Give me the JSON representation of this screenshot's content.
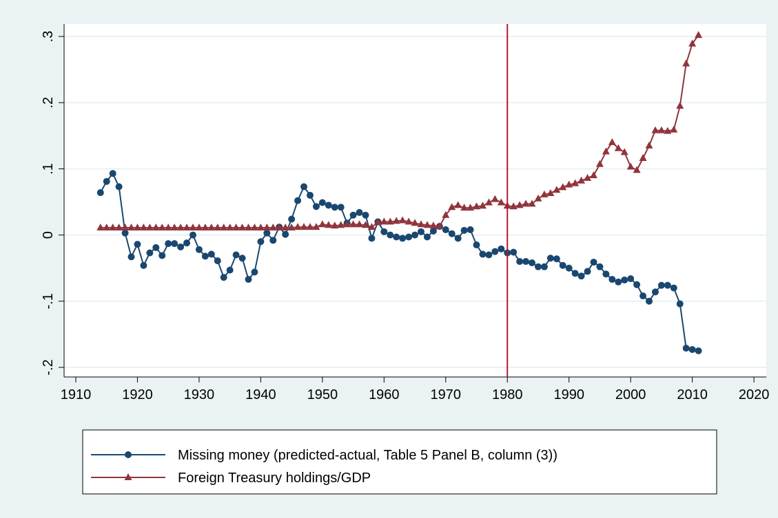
{
  "chart_data": {
    "type": "line",
    "x": [
      1914,
      1915,
      1916,
      1917,
      1918,
      1919,
      1920,
      1921,
      1922,
      1923,
      1924,
      1925,
      1926,
      1927,
      1928,
      1929,
      1930,
      1931,
      1932,
      1933,
      1934,
      1935,
      1936,
      1937,
      1938,
      1939,
      1940,
      1941,
      1942,
      1943,
      1944,
      1945,
      1946,
      1947,
      1948,
      1949,
      1950,
      1951,
      1952,
      1953,
      1954,
      1955,
      1956,
      1957,
      1958,
      1959,
      1960,
      1961,
      1962,
      1963,
      1964,
      1965,
      1966,
      1967,
      1968,
      1969,
      1970,
      1971,
      1972,
      1973,
      1974,
      1975,
      1976,
      1977,
      1978,
      1979,
      1980,
      1981,
      1982,
      1983,
      1984,
      1985,
      1986,
      1987,
      1988,
      1989,
      1990,
      1991,
      1992,
      1993,
      1994,
      1995,
      1996,
      1997,
      1998,
      1999,
      2000,
      2001,
      2002,
      2003,
      2004,
      2005,
      2006,
      2007,
      2008,
      2009,
      2010,
      2011
    ],
    "series": [
      {
        "name": "Missing money (predicted-actual, Table 5 Panel B, column (3))",
        "color": "#1a476f",
        "marker": "circle",
        "values": [
          0.064,
          0.081,
          0.093,
          0.073,
          0.003,
          -0.033,
          -0.014,
          -0.046,
          -0.027,
          -0.019,
          -0.031,
          -0.013,
          -0.013,
          -0.018,
          -0.012,
          0.0,
          -0.022,
          -0.032,
          -0.029,
          -0.039,
          -0.064,
          -0.053,
          -0.03,
          -0.035,
          -0.067,
          -0.056,
          -0.01,
          0.003,
          -0.008,
          0.012,
          0.001,
          0.024,
          0.052,
          0.073,
          0.06,
          0.043,
          0.049,
          0.045,
          0.042,
          0.042,
          0.018,
          0.03,
          0.034,
          0.03,
          -0.005,
          0.02,
          0.005,
          0.0,
          -0.003,
          -0.005,
          -0.003,
          0.0,
          0.005,
          -0.003,
          0.006,
          0.013,
          0.008,
          0.002,
          -0.005,
          0.007,
          0.008,
          -0.015,
          -0.029,
          -0.03,
          -0.025,
          -0.021,
          -0.027,
          -0.026,
          -0.04,
          -0.04,
          -0.042,
          -0.048,
          -0.048,
          -0.035,
          -0.036,
          -0.046,
          -0.05,
          -0.058,
          -0.062,
          -0.055,
          -0.041,
          -0.048,
          -0.059,
          -0.067,
          -0.071,
          -0.068,
          -0.066,
          -0.075,
          -0.092,
          -0.1,
          -0.086,
          -0.076,
          -0.076,
          -0.08,
          -0.104,
          -0.171,
          -0.173,
          -0.175
        ]
      },
      {
        "name": "Foreign Treasury holdings/GDP",
        "color": "#90353b",
        "marker": "triangle",
        "values": [
          0.011,
          0.011,
          0.011,
          0.011,
          0.011,
          0.011,
          0.011,
          0.011,
          0.011,
          0.011,
          0.011,
          0.011,
          0.011,
          0.011,
          0.011,
          0.011,
          0.011,
          0.011,
          0.011,
          0.011,
          0.011,
          0.011,
          0.011,
          0.011,
          0.011,
          0.011,
          0.011,
          0.011,
          0.011,
          0.011,
          0.011,
          0.011,
          0.012,
          0.012,
          0.012,
          0.012,
          0.016,
          0.015,
          0.014,
          0.015,
          0.016,
          0.016,
          0.016,
          0.015,
          0.012,
          0.019,
          0.02,
          0.02,
          0.021,
          0.022,
          0.02,
          0.018,
          0.016,
          0.015,
          0.014,
          0.013,
          0.03,
          0.042,
          0.045,
          0.041,
          0.041,
          0.043,
          0.044,
          0.049,
          0.054,
          0.049,
          0.044,
          0.043,
          0.045,
          0.047,
          0.047,
          0.055,
          0.061,
          0.063,
          0.068,
          0.072,
          0.076,
          0.078,
          0.082,
          0.086,
          0.09,
          0.107,
          0.126,
          0.14,
          0.131,
          0.125,
          0.103,
          0.098,
          0.116,
          0.135,
          0.158,
          0.158,
          0.157,
          0.159,
          0.195,
          0.259,
          0.289,
          0.302
        ]
      }
    ],
    "xlim": [
      1908.1,
      2022
    ],
    "xticks": [
      1910,
      1920,
      1930,
      1940,
      1950,
      1960,
      1970,
      1980,
      1990,
      2000,
      2010,
      2020
    ],
    "ylim": [
      -0.2145,
      0.3187
    ],
    "yticks": [
      {
        "value": -0.2,
        "label": "-.2"
      },
      {
        "value": -0.1,
        "label": "-.1"
      },
      0,
      {
        "value": 0.1,
        "label": ".1"
      },
      {
        "value": 0.2,
        "label": ".2"
      },
      {
        "value": 0.3,
        "label": ".3"
      }
    ],
    "xline": 1980,
    "xline_color": "#b2182b",
    "grid": true,
    "legend": "bottom"
  }
}
